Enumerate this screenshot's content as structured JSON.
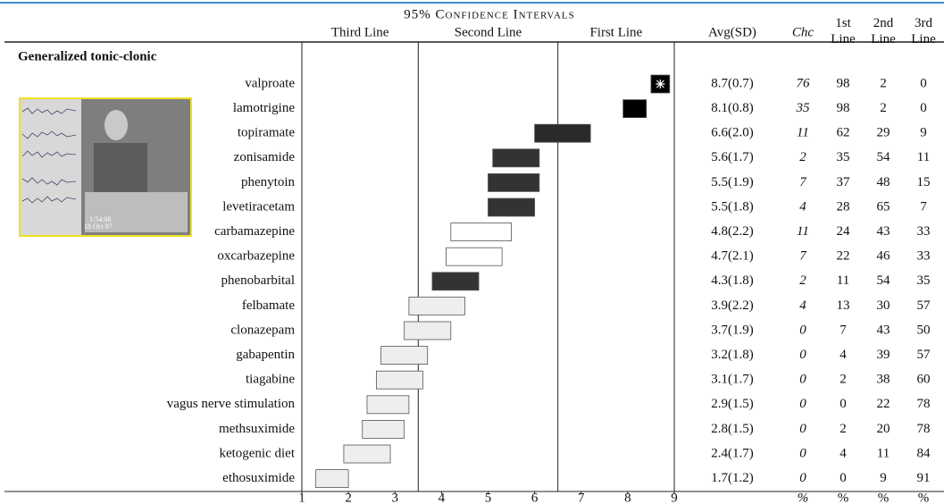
{
  "chart_data": {
    "type": "interval",
    "title": "95% Confidence Intervals",
    "bands": [
      "Third Line",
      "Second Line",
      "First Line"
    ],
    "dividers": [
      3.5,
      6.5
    ],
    "section": "Generalized tonic-clonic",
    "image_text": [
      "1:54:08",
      "18 Oct 97"
    ],
    "categories": [
      "valproate",
      "lamotrigine",
      "topiramate",
      "zonisamide",
      "phenytoin",
      "levetiracetam",
      "carbamazepine",
      "oxcarbazepine",
      "phenobarbital",
      "felbamate",
      "clonazepam",
      "gabapentin",
      "tiagabine",
      "vagus nerve stimulation",
      "methsuximide",
      "ketogenic diet",
      "ethosuximide"
    ],
    "low": [
      8.5,
      7.9,
      6.0,
      5.1,
      5.0,
      5.0,
      4.2,
      4.1,
      3.8,
      3.3,
      3.2,
      2.7,
      2.6,
      2.4,
      2.3,
      1.9,
      1.3
    ],
    "high": [
      8.9,
      8.4,
      7.2,
      6.1,
      6.1,
      6.0,
      5.5,
      5.3,
      4.8,
      4.5,
      4.2,
      3.7,
      3.6,
      3.3,
      3.2,
      2.9,
      2.0
    ],
    "colors": [
      "#000000",
      "#000000",
      "#2a2a2a",
      "#333333",
      "#333333",
      "#333333",
      "#ffffff",
      "#ffffff",
      "#333333",
      "#eeeeee",
      "#eeeeee",
      "#eeeeee",
      "#eeeeee",
      "#eeeeee",
      "#eeeeee",
      "#eeeeee",
      "#eeeeee"
    ],
    "xlim": [
      1,
      9
    ],
    "xticks": [
      1,
      2,
      3,
      4,
      5,
      6,
      7,
      8,
      9
    ],
    "table": {
      "columns": [
        "Avg(SD)",
        "Chc",
        "1st Line",
        "2nd Line",
        "3rd Line"
      ],
      "rows": [
        [
          "8.7(0.7)",
          76,
          98,
          2,
          0
        ],
        [
          "8.1(0.8)",
          35,
          98,
          2,
          0
        ],
        [
          "6.6(2.0)",
          11,
          62,
          29,
          9
        ],
        [
          "5.6(1.7)",
          2,
          35,
          54,
          11
        ],
        [
          "5.5(1.9)",
          7,
          37,
          48,
          15
        ],
        [
          "5.5(1.8)",
          4,
          28,
          65,
          7
        ],
        [
          "4.8(2.2)",
          11,
          24,
          43,
          33
        ],
        [
          "4.7(2.1)",
          7,
          22,
          46,
          33
        ],
        [
          "4.3(1.8)",
          2,
          11,
          54,
          35
        ],
        [
          "3.9(2.2)",
          4,
          13,
          30,
          57
        ],
        [
          "3.7(1.9)",
          0,
          7,
          43,
          50
        ],
        [
          "3.2(1.8)",
          0,
          4,
          39,
          57
        ],
        [
          "3.1(1.7)",
          0,
          2,
          38,
          60
        ],
        [
          "2.9(1.5)",
          0,
          0,
          22,
          78
        ],
        [
          "2.8(1.5)",
          0,
          2,
          20,
          78
        ],
        [
          "2.4(1.7)",
          0,
          4,
          11,
          84
        ],
        [
          "1.7(1.2)",
          0,
          0,
          9,
          91
        ]
      ],
      "footer": [
        "%",
        "%",
        "%",
        "%"
      ]
    }
  }
}
